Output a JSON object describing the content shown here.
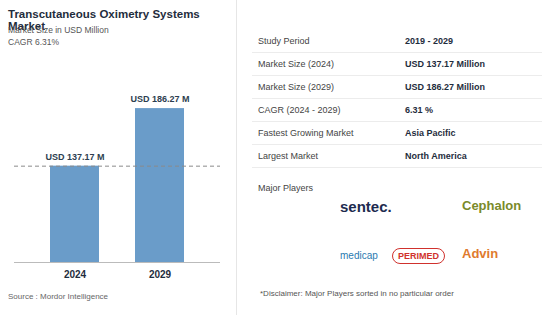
{
  "chart_data": {
    "type": "bar",
    "title": "Transcutaneous Oximetry Systems Market",
    "subtitle": "Market Size in USD Million",
    "annotations": [
      "CAGR 6.31%"
    ],
    "categories": [
      "2024",
      "2029"
    ],
    "values": [
      137.17,
      186.27
    ],
    "value_labels": [
      "USD 137.17 M",
      "USD 186.27 M"
    ],
    "color": "#6a9cc9",
    "ylim": [
      55,
      200
    ],
    "tick_labels": "x",
    "data_labels": true,
    "grid": false
  },
  "source": "Source : Mordor Intelligence",
  "summary_table": [
    [
      "Study Period",
      "2019 - 2029"
    ],
    [
      "Market Size (2024)",
      "USD 137.17 Million"
    ],
    [
      "Market Size (2029)",
      "USD 186.27 Million"
    ],
    [
      "CAGR (2024 - 2029)",
      "6.31 %"
    ],
    [
      "Fastest Growing Market",
      "Asia Pacific"
    ],
    [
      "Largest Market",
      "North America"
    ]
  ],
  "major_players": {
    "label": "Major Players",
    "names": [
      "sentec.",
      "Cephalon",
      "medicap",
      "PERIMED",
      "Advin"
    ]
  },
  "disclaimer": "*Disclaimer: Major Players sorted in no particular order"
}
